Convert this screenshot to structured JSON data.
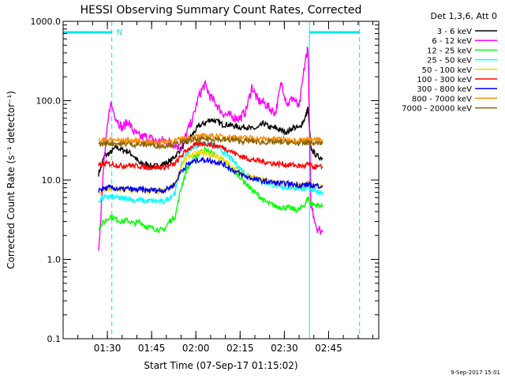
{
  "chart_data": {
    "type": "line",
    "title": "HESSI Observing Summary Count Rates, Corrected",
    "xlabel": "Start Time (07-Sep-17 01:15:02)",
    "ylabel": "Corrected Count Rate (s⁻¹ detector⁻¹)",
    "y_scale": "log",
    "ylim": [
      0.1,
      1000
    ],
    "xlim_minutes_after_start": [
      0,
      107
    ],
    "y_ticks": [
      "0.1",
      "1.0",
      "10.0",
      "100.0",
      "1000.0"
    ],
    "x_ticks": [
      {
        "label": "01:30",
        "minute": 15
      },
      {
        "label": "01:45",
        "minute": 30
      },
      {
        "label": "02:00",
        "minute": 45
      },
      {
        "label": "02:15",
        "minute": 60
      },
      {
        "label": "02:30",
        "minute": 75
      },
      {
        "label": "02:45",
        "minute": 90
      }
    ],
    "legend_header": "Det 1,3,6, Att 0",
    "legend_position": "outside-right",
    "footer_date": "9-Sep-2017 15:01",
    "night_marker_label": "N",
    "night_bars": [
      {
        "start_minute": 0,
        "end_minute": 16.5
      },
      {
        "start_minute": 83.5,
        "end_minute": 100.5
      }
    ],
    "vertical_lines": [
      {
        "minute": 0,
        "style": "solid"
      },
      {
        "minute": 16.5,
        "style": "dashed"
      },
      {
        "minute": 83.5,
        "style": "solid"
      },
      {
        "minute": 100.5,
        "style": "dashed"
      }
    ],
    "series": [
      {
        "name": "3 - 6 keV",
        "color": "#000000",
        "x": [
          12,
          14,
          16,
          18,
          20,
          22,
          24,
          26,
          28,
          30,
          32,
          34,
          36,
          38,
          40,
          42,
          44,
          46,
          48,
          50,
          52,
          54,
          56,
          58,
          60,
          62,
          64,
          66,
          68,
          70,
          72,
          74,
          76,
          78,
          80,
          82,
          83,
          84,
          86,
          88
        ],
        "values": [
          12,
          20,
          22,
          26,
          24,
          23,
          20,
          16,
          16,
          15,
          15,
          16,
          17,
          20,
          25,
          30,
          38,
          48,
          52,
          58,
          55,
          50,
          50,
          48,
          46,
          47,
          44,
          45,
          52,
          46,
          45,
          42,
          40,
          46,
          45,
          60,
          80,
          25,
          20,
          19
        ]
      },
      {
        "name": "6 - 12 keV",
        "color": "#ff00ff",
        "x": [
          12,
          14,
          16,
          18,
          20,
          22,
          24,
          26,
          28,
          30,
          32,
          34,
          36,
          38,
          40,
          42,
          44,
          46,
          48,
          50,
          52,
          54,
          56,
          58,
          60,
          62,
          64,
          66,
          68,
          70,
          72,
          74,
          76,
          78,
          80,
          82,
          83,
          84,
          86,
          88
        ],
        "values": [
          1.3,
          20,
          95,
          60,
          45,
          55,
          40,
          35,
          35,
          33,
          30,
          32,
          30,
          28,
          25,
          40,
          60,
          115,
          160,
          110,
          90,
          70,
          65,
          62,
          60,
          75,
          150,
          100,
          95,
          80,
          70,
          170,
          90,
          110,
          80,
          300,
          480,
          5,
          2.5,
          2.2
        ]
      },
      {
        "name": "12 - 25 keV",
        "color": "#00ff00",
        "x": [
          12,
          14,
          16,
          18,
          20,
          22,
          24,
          26,
          28,
          30,
          32,
          34,
          36,
          38,
          40,
          42,
          44,
          46,
          48,
          50,
          52,
          54,
          56,
          58,
          60,
          62,
          64,
          66,
          68,
          70,
          72,
          74,
          76,
          78,
          80,
          82,
          83,
          84,
          86,
          88
        ],
        "values": [
          2.5,
          3.0,
          3.5,
          3.2,
          3.0,
          3.1,
          2.8,
          3.0,
          2.6,
          2.5,
          2.4,
          2.3,
          3.0,
          3.5,
          8,
          14,
          18,
          22,
          24,
          22,
          20,
          18,
          15,
          13,
          11,
          9,
          7.5,
          6.5,
          5.5,
          5.0,
          4.7,
          4.5,
          4.5,
          4.3,
          4.2,
          5.0,
          6.0,
          5.0,
          4.8,
          4.7
        ]
      },
      {
        "name": "25 - 50 keV",
        "color": "#00ffff",
        "x": [
          12,
          14,
          16,
          18,
          20,
          22,
          24,
          26,
          28,
          30,
          32,
          34,
          36,
          38,
          40,
          42,
          44,
          46,
          48,
          50,
          52,
          54,
          56,
          58,
          60,
          62,
          64,
          66,
          68,
          70,
          72,
          74,
          76,
          78,
          80,
          82,
          83,
          84,
          86,
          88
        ],
        "values": [
          5.5,
          6.0,
          6.2,
          6.0,
          5.8,
          6.0,
          5.5,
          5.6,
          5.4,
          5.5,
          5.4,
          5.3,
          6.0,
          7.0,
          15,
          22,
          26,
          28,
          30,
          28,
          26,
          23,
          20,
          17,
          14,
          12,
          11,
          10,
          9.5,
          9,
          8.5,
          8.0,
          8.2,
          8.0,
          7.8,
          8.0,
          8.5,
          7.5,
          7.2,
          7.0
        ]
      },
      {
        "name": "50 - 100 keV",
        "color": "#ffd700",
        "x": [
          12,
          14,
          16,
          18,
          20,
          22,
          24,
          26,
          28,
          30,
          32,
          34,
          36,
          38,
          40,
          42,
          44,
          46,
          48,
          50,
          52,
          54,
          56,
          58,
          60,
          62,
          64,
          66,
          68,
          70,
          72,
          74,
          76,
          78,
          80,
          82,
          83,
          84,
          86,
          88
        ],
        "values": [
          7,
          7.5,
          7.8,
          7.6,
          7.5,
          7.6,
          7.3,
          7.4,
          7.2,
          7.3,
          7.2,
          7.2,
          7.8,
          9,
          15,
          19,
          21,
          22,
          22,
          21,
          20,
          18,
          16,
          14,
          12.5,
          11.5,
          11,
          10.5,
          10,
          9.5,
          9.2,
          9.0,
          9.0,
          8.8,
          8.7,
          8.8,
          9.0,
          8.5,
          8.3,
          8.2
        ]
      },
      {
        "name": "100 - 300 keV",
        "color": "#ff0000",
        "x": [
          12,
          14,
          16,
          18,
          20,
          22,
          24,
          26,
          28,
          30,
          32,
          34,
          36,
          38,
          40,
          42,
          44,
          46,
          48,
          50,
          52,
          54,
          56,
          58,
          60,
          62,
          64,
          66,
          68,
          70,
          72,
          74,
          76,
          78,
          80,
          82,
          83,
          84,
          86,
          88
        ],
        "values": [
          15,
          16,
          16,
          15.5,
          15,
          15.5,
          15,
          15,
          14.5,
          14.5,
          14.5,
          14.5,
          15,
          16,
          20,
          24,
          27,
          28,
          29,
          28,
          27,
          26,
          24,
          22,
          20,
          19,
          18,
          17.5,
          17,
          16.5,
          16,
          16,
          15.5,
          15.5,
          15,
          15,
          16,
          15,
          14.5,
          14.5
        ]
      },
      {
        "name": "300 - 800 keV",
        "color": "#0000ff",
        "x": [
          12,
          14,
          16,
          18,
          20,
          22,
          24,
          26,
          28,
          30,
          32,
          34,
          36,
          38,
          40,
          42,
          44,
          46,
          48,
          50,
          52,
          54,
          56,
          58,
          60,
          62,
          64,
          66,
          68,
          70,
          72,
          74,
          76,
          78,
          80,
          82,
          83,
          84,
          86,
          88
        ],
        "values": [
          7.5,
          7.8,
          8.0,
          7.8,
          7.6,
          7.8,
          7.5,
          7.6,
          7.4,
          7.5,
          7.4,
          7.4,
          8.0,
          9,
          13,
          15.5,
          17,
          18,
          18,
          17.5,
          17,
          16,
          14.5,
          13,
          12,
          11,
          10.5,
          10,
          9.7,
          9.5,
          9.2,
          9.0,
          9.0,
          8.8,
          8.6,
          8.7,
          8.8,
          8.6,
          8.5,
          8.5
        ]
      },
      {
        "name": "800 - 7000 keV",
        "color": "#ff8c00",
        "x": [
          12,
          14,
          16,
          18,
          20,
          22,
          24,
          26,
          28,
          30,
          32,
          34,
          36,
          38,
          40,
          42,
          44,
          46,
          48,
          50,
          52,
          54,
          56,
          58,
          60,
          62,
          64,
          66,
          68,
          70,
          72,
          74,
          76,
          78,
          80,
          82,
          83,
          84,
          86,
          88
        ],
        "values": [
          31,
          32,
          32,
          32,
          31,
          32,
          31,
          31,
          30,
          30,
          30,
          30,
          31,
          31,
          33,
          34,
          35,
          35,
          36,
          36,
          36,
          35,
          35,
          35,
          34,
          34,
          34,
          33,
          33,
          33,
          33,
          33,
          32,
          32,
          32,
          32,
          33,
          32,
          32,
          32
        ]
      },
      {
        "name": "7000 - 20000 keV",
        "color": "#8b6508",
        "x": [
          12,
          14,
          16,
          18,
          20,
          22,
          24,
          26,
          28,
          30,
          32,
          34,
          36,
          38,
          40,
          42,
          44,
          46,
          48,
          50,
          52,
          54,
          56,
          58,
          60,
          62,
          64,
          66,
          68,
          70,
          72,
          74,
          76,
          78,
          80,
          82,
          83,
          84,
          86,
          88
        ],
        "values": [
          28,
          29,
          29,
          29,
          28,
          29,
          28,
          28,
          28,
          28,
          27,
          27,
          28,
          28,
          30,
          31,
          32,
          32,
          33,
          33,
          33,
          32,
          32,
          32,
          31,
          31,
          31,
          30,
          30,
          30,
          30,
          30,
          30,
          29,
          29,
          29,
          30,
          29,
          29,
          29
        ]
      }
    ]
  }
}
